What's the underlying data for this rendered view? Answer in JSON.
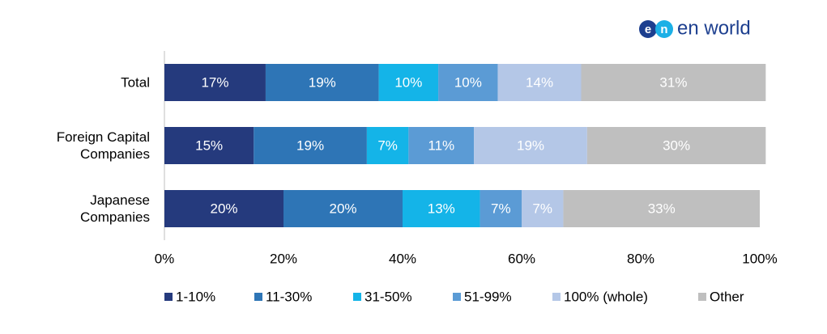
{
  "logo": {
    "badge": [
      "e",
      "n"
    ],
    "text": "en world"
  },
  "chart_data": {
    "type": "stacked-bar-horizontal",
    "categories": [
      "Total",
      "Foreign Capital Companies",
      "Japanese Companies"
    ],
    "series": [
      {
        "name": "1-10%",
        "color": "#253a7d",
        "values": [
          17,
          15,
          20
        ],
        "value_labels": [
          "17%",
          "15%",
          "20%"
        ]
      },
      {
        "name": "11-30%",
        "color": "#2e75b6",
        "values": [
          19,
          19,
          20
        ],
        "value_labels": [
          "19%",
          "19%",
          "20%"
        ]
      },
      {
        "name": "31-50%",
        "color": "#14b4e8",
        "values": [
          10,
          7,
          13
        ],
        "value_labels": [
          "10%",
          "7%",
          "13%"
        ]
      },
      {
        "name": "51-99%",
        "color": "#5b9bd5",
        "values": [
          10,
          11,
          7
        ],
        "value_labels": [
          "10%",
          "11%",
          "7%"
        ]
      },
      {
        "name": "100% (whole)",
        "color": "#b4c7e7",
        "values": [
          14,
          19,
          7
        ],
        "value_labels": [
          "14%",
          "19%",
          "7%"
        ]
      },
      {
        "name": "Other",
        "color": "#bfbfbf",
        "values": [
          31,
          30,
          33
        ],
        "value_labels": [
          "31%",
          "30%",
          "33%"
        ]
      }
    ],
    "xlim": [
      0,
      100
    ],
    "xticks": [
      {
        "value": 0,
        "label": "0%"
      },
      {
        "value": 20,
        "label": "20%"
      },
      {
        "value": 40,
        "label": "40%"
      },
      {
        "value": 60,
        "label": "60%"
      },
      {
        "value": 80,
        "label": "80%"
      },
      {
        "value": 100,
        "label": "100%"
      }
    ],
    "legend": "bottom"
  }
}
